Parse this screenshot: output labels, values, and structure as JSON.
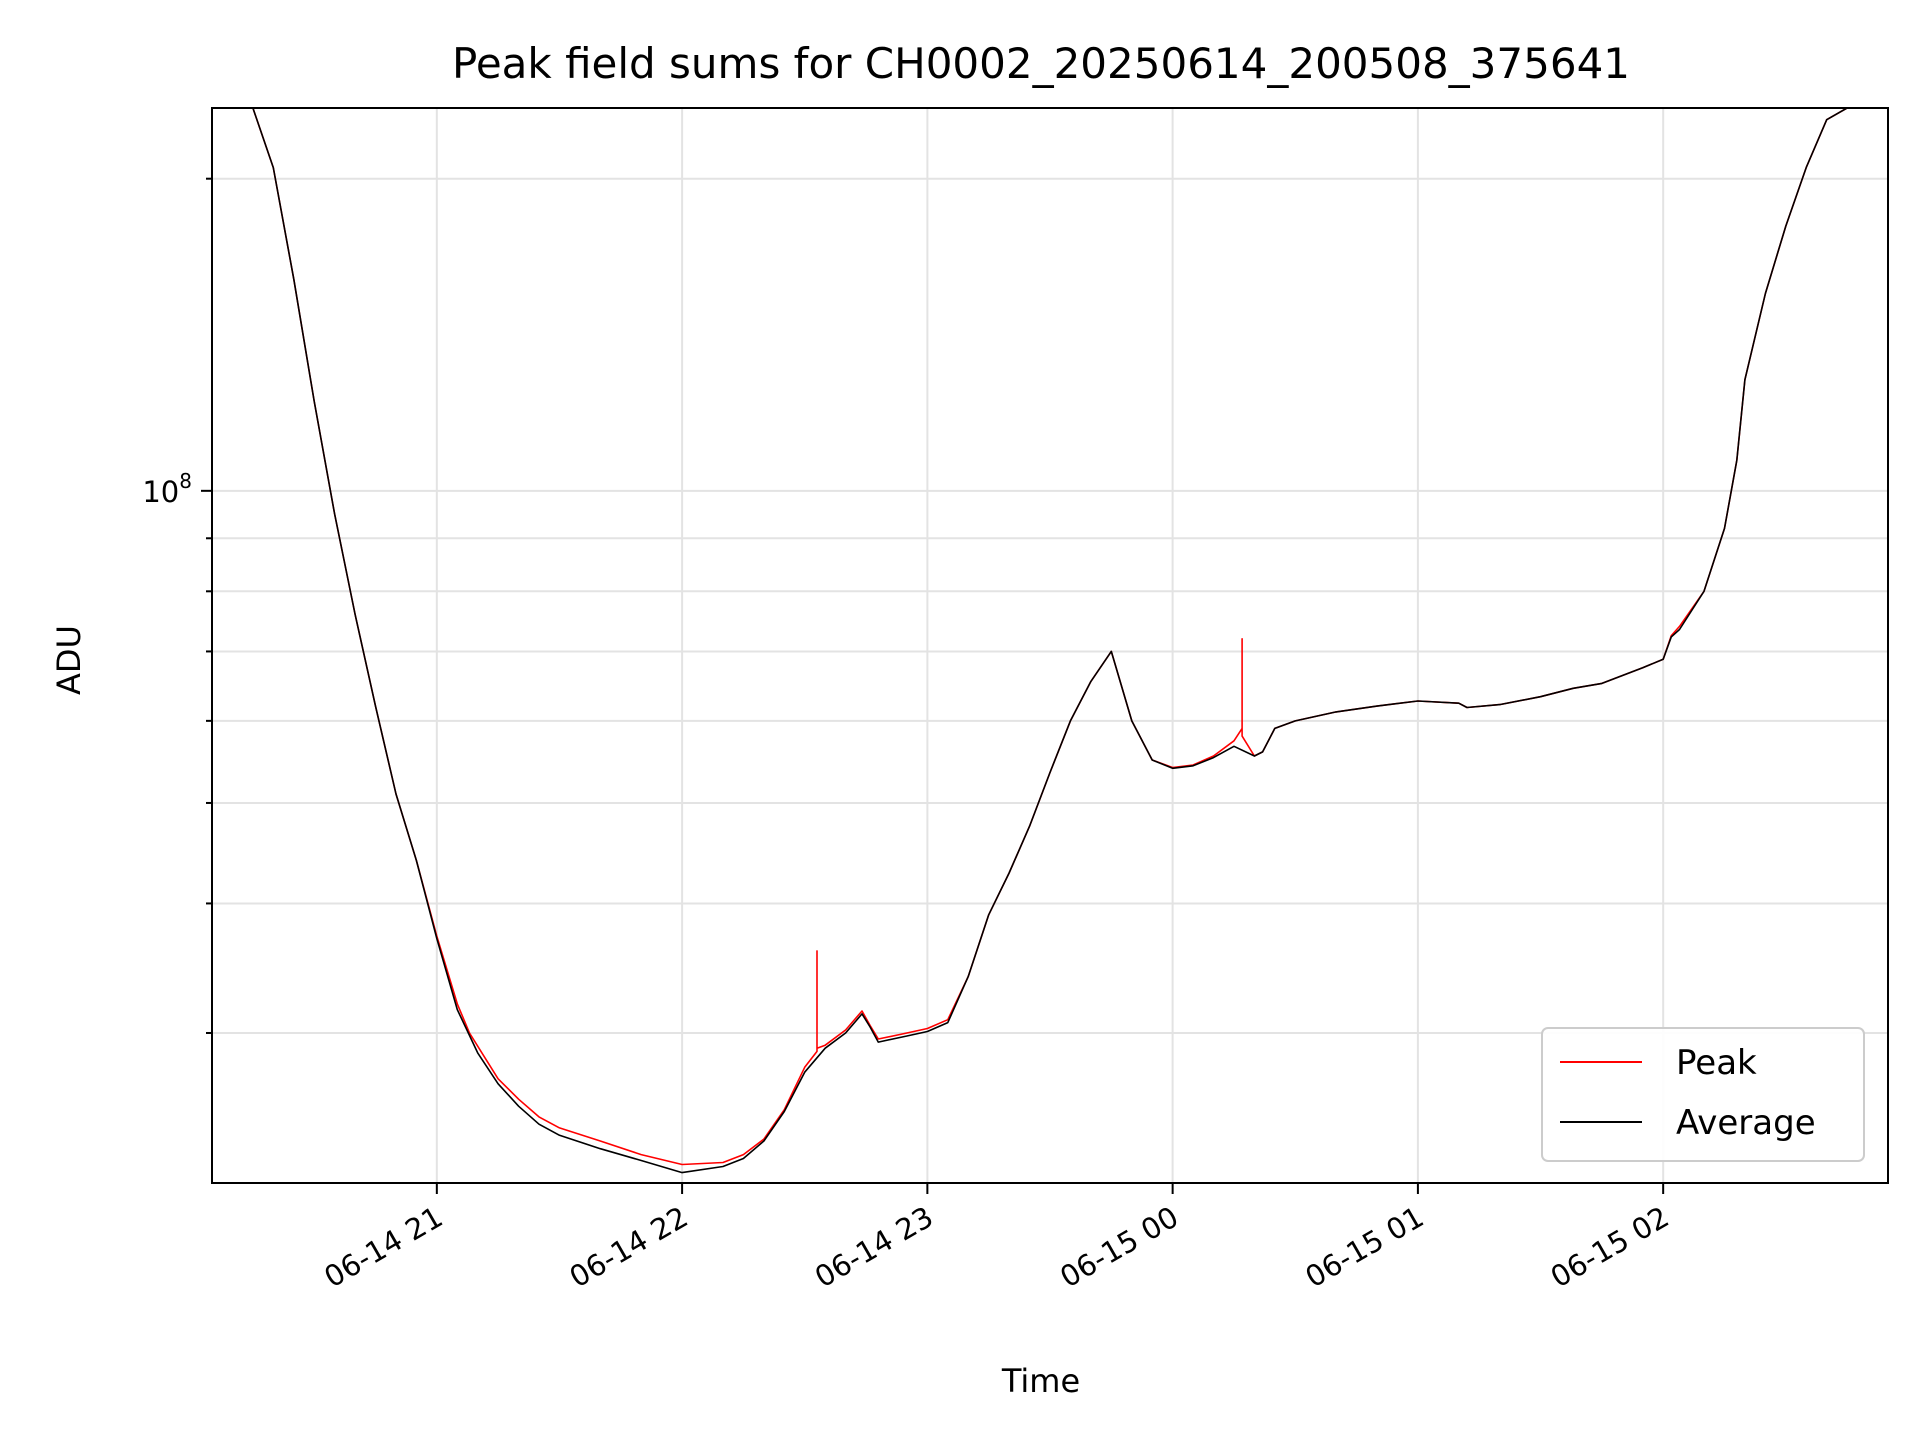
{
  "chart_data": {
    "type": "line",
    "title": "Peak field sums for CH0002_20250614_200508_375641",
    "xlabel": "Time",
    "ylabel": "ADU",
    "x_scale": "time",
    "y_scale": "log",
    "xlim": [
      "2025-06-14 20:05",
      "2025-06-15 02:55"
    ],
    "ylim": [
      21500000,
      234000000
    ],
    "x_ticks": [
      {
        "value": "2025-06-14 21:00",
        "label": "06-14 21"
      },
      {
        "value": "2025-06-14 22:00",
        "label": "06-14 22"
      },
      {
        "value": "2025-06-14 23:00",
        "label": "06-14 23"
      },
      {
        "value": "2025-06-15 00:00",
        "label": "06-15 00"
      },
      {
        "value": "2025-06-15 01:00",
        "label": "06-15 01"
      },
      {
        "value": "2025-06-15 02:00",
        "label": "06-15 02"
      }
    ],
    "y_major_ticks": [
      {
        "value": 100000000,
        "label_base": "10",
        "label_exp": "8"
      }
    ],
    "y_minor_ticks": [
      30000000,
      40000000,
      50000000,
      60000000,
      70000000,
      80000000,
      90000000,
      200000000
    ],
    "grid": true,
    "legend": "lower right",
    "series": [
      {
        "name": "Peak",
        "color": "#ff0000",
        "x": [
          "2025-06-14 20:15",
          "2025-06-14 20:20",
          "2025-06-14 20:25",
          "2025-06-14 20:30",
          "2025-06-14 20:35",
          "2025-06-14 20:40",
          "2025-06-14 20:45",
          "2025-06-14 20:50",
          "2025-06-14 20:55",
          "2025-06-14 21:00",
          "2025-06-14 21:05",
          "2025-06-14 21:08",
          "2025-06-14 21:12",
          "2025-06-14 21:15",
          "2025-06-14 21:20",
          "2025-06-14 21:25",
          "2025-06-14 21:30",
          "2025-06-14 21:40",
          "2025-06-14 21:50",
          "2025-06-14 22:00",
          "2025-06-14 22:10",
          "2025-06-14 22:15",
          "2025-06-14 22:20",
          "2025-06-14 22:25",
          "2025-06-14 22:30",
          "2025-06-14 22:33",
          "2025-06-14 22:33",
          "2025-06-14 22:33",
          "2025-06-14 22:35",
          "2025-06-14 22:40",
          "2025-06-14 22:44",
          "2025-06-14 22:46",
          "2025-06-14 22:48",
          "2025-06-14 22:55",
          "2025-06-14 23:00",
          "2025-06-14 23:05",
          "2025-06-14 23:10",
          "2025-06-14 23:15",
          "2025-06-14 23:20",
          "2025-06-14 23:25",
          "2025-06-14 23:30",
          "2025-06-14 23:35",
          "2025-06-14 23:40",
          "2025-06-14 23:45",
          "2025-06-14 23:50",
          "2025-06-14 23:55",
          "2025-06-15 00:00",
          "2025-06-15 00:05",
          "2025-06-15 00:10",
          "2025-06-15 00:15",
          "2025-06-15 00:17",
          "2025-06-15 00:17",
          "2025-06-15 00:17",
          "2025-06-15 00:20",
          "2025-06-15 00:22",
          "2025-06-15 00:25",
          "2025-06-15 00:30",
          "2025-06-15 00:40",
          "2025-06-15 00:50",
          "2025-06-15 01:00",
          "2025-06-15 01:10",
          "2025-06-15 01:12",
          "2025-06-15 01:20",
          "2025-06-15 01:30",
          "2025-06-15 01:38",
          "2025-06-15 01:45",
          "2025-06-15 01:55",
          "2025-06-15 02:00",
          "2025-06-15 02:02",
          "2025-06-15 02:04",
          "2025-06-15 02:10",
          "2025-06-15 02:15",
          "2025-06-15 02:18",
          "2025-06-15 02:20",
          "2025-06-15 02:25",
          "2025-06-15 02:30",
          "2025-06-15 02:35",
          "2025-06-15 02:40",
          "2025-06-15 02:45"
        ],
        "y": [
          234000000,
          205000000,
          160000000,
          122000000,
          95000000,
          76000000,
          62000000,
          51000000,
          44000000,
          37200000,
          32000000,
          30000000,
          28300000,
          27100000,
          25900000,
          24900000,
          24300000,
          23600000,
          22900000,
          22400000,
          22500000,
          22900000,
          23700000,
          25300000,
          27800000,
          28800000,
          36000000,
          29000000,
          29200000,
          30200000,
          31500000,
          30500000,
          29600000,
          30000000,
          30300000,
          30900000,
          34000000,
          39000000,
          42800000,
          47500000,
          53500000,
          60000000,
          65500000,
          70000000,
          60000000,
          55000000,
          54100000,
          54400000,
          55500000,
          57400000,
          59000000,
          72000000,
          58000000,
          55500000,
          56000000,
          59000000,
          60000000,
          61200000,
          62000000,
          62700000,
          62400000,
          61800000,
          62200000,
          63300000,
          64500000,
          65200000,
          67500000,
          68800000,
          72500000,
          74000000,
          80000000,
          92000000,
          107000000,
          128000000,
          155000000,
          180000000,
          205000000,
          228000000,
          234000000
        ]
      },
      {
        "name": "Average",
        "color": "#000000",
        "x": [
          "2025-06-14 20:15",
          "2025-06-14 20:20",
          "2025-06-14 20:25",
          "2025-06-14 20:30",
          "2025-06-14 20:35",
          "2025-06-14 20:40",
          "2025-06-14 20:45",
          "2025-06-14 20:50",
          "2025-06-14 20:55",
          "2025-06-14 21:00",
          "2025-06-14 21:05",
          "2025-06-14 21:10",
          "2025-06-14 21:15",
          "2025-06-14 21:20",
          "2025-06-14 21:25",
          "2025-06-14 21:30",
          "2025-06-14 21:40",
          "2025-06-14 21:50",
          "2025-06-14 22:00",
          "2025-06-14 22:10",
          "2025-06-14 22:15",
          "2025-06-14 22:20",
          "2025-06-14 22:25",
          "2025-06-14 22:30",
          "2025-06-14 22:35",
          "2025-06-14 22:40",
          "2025-06-14 22:44",
          "2025-06-14 22:46",
          "2025-06-14 22:48",
          "2025-06-14 22:55",
          "2025-06-14 23:00",
          "2025-06-14 23:05",
          "2025-06-14 23:10",
          "2025-06-14 23:15",
          "2025-06-14 23:20",
          "2025-06-14 23:25",
          "2025-06-14 23:30",
          "2025-06-14 23:35",
          "2025-06-14 23:40",
          "2025-06-14 23:45",
          "2025-06-14 23:50",
          "2025-06-14 23:55",
          "2025-06-15 00:00",
          "2025-06-15 00:05",
          "2025-06-15 00:10",
          "2025-06-15 00:15",
          "2025-06-15 00:20",
          "2025-06-15 00:22",
          "2025-06-15 00:25",
          "2025-06-15 00:30",
          "2025-06-15 00:40",
          "2025-06-15 00:50",
          "2025-06-15 01:00",
          "2025-06-15 01:10",
          "2025-06-15 01:12",
          "2025-06-15 01:20",
          "2025-06-15 01:30",
          "2025-06-15 01:38",
          "2025-06-15 01:45",
          "2025-06-15 01:55",
          "2025-06-15 02:00",
          "2025-06-15 02:02",
          "2025-06-15 02:04",
          "2025-06-15 02:10",
          "2025-06-15 02:15",
          "2025-06-15 02:18",
          "2025-06-15 02:20",
          "2025-06-15 02:25",
          "2025-06-15 02:30",
          "2025-06-15 02:35",
          "2025-06-15 02:40",
          "2025-06-15 02:45"
        ],
        "y": [
          234000000,
          205000000,
          160000000,
          122000000,
          95000000,
          76000000,
          62000000,
          51000000,
          44000000,
          37000000,
          31600000,
          28700000,
          26800000,
          25500000,
          24500000,
          23900000,
          23200000,
          22600000,
          22000000,
          22300000,
          22700000,
          23600000,
          25200000,
          27500000,
          29000000,
          30000000,
          31300000,
          30400000,
          29400000,
          29800000,
          30100000,
          30700000,
          34000000,
          39000000,
          42800000,
          47500000,
          53500000,
          60000000,
          65500000,
          70000000,
          60000000,
          55000000,
          54000000,
          54300000,
          55300000,
          56700000,
          55500000,
          56000000,
          59000000,
          60000000,
          61200000,
          62000000,
          62700000,
          62400000,
          61800000,
          62200000,
          63300000,
          64500000,
          65200000,
          67500000,
          68800000,
          72300000,
          73500000,
          80000000,
          92000000,
          107000000,
          128000000,
          155000000,
          180000000,
          205000000,
          228000000,
          234000000
        ]
      }
    ]
  }
}
